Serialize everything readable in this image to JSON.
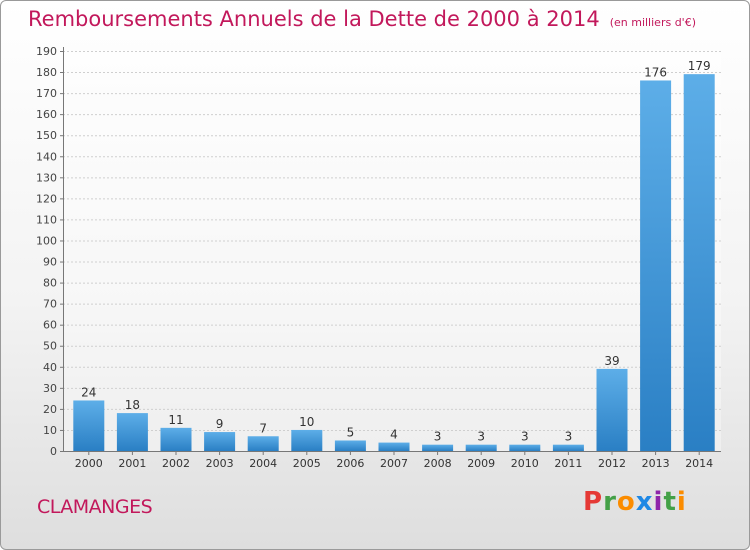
{
  "title": "Remboursements Annuels de la Dette de 2000 à 2014",
  "subtitle": "(en milliers d'€)",
  "location": "CLAMANGES",
  "logo": {
    "letters": [
      "P",
      "r",
      "o",
      "x",
      "i",
      "t",
      "i"
    ],
    "colors": [
      "#e53935",
      "#43a047",
      "#fb8c00",
      "#1e88e5",
      "#8e24aa",
      "#43a047",
      "#fb8c00"
    ]
  },
  "chart_data": {
    "type": "bar",
    "title": "Remboursements Annuels de la Dette de 2000 à 2014",
    "ylabel": "",
    "xlabel": "",
    "categories": [
      "2000",
      "2001",
      "2002",
      "2003",
      "2004",
      "2005",
      "2006",
      "2007",
      "2008",
      "2009",
      "2010",
      "2011",
      "2012",
      "2013",
      "2014"
    ],
    "values": [
      24,
      18,
      11,
      9,
      7,
      10,
      5,
      4,
      3,
      3,
      3,
      3,
      39,
      176,
      179
    ],
    "ylim": [
      0,
      190
    ],
    "yticks": [
      0,
      10,
      20,
      30,
      40,
      50,
      60,
      70,
      80,
      90,
      100,
      110,
      120,
      130,
      140,
      150,
      160,
      170,
      180,
      190
    ],
    "grid": true,
    "bar_color": "#3a8fd6"
  }
}
